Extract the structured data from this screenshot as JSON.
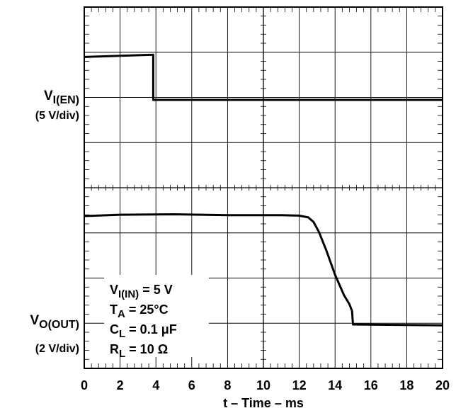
{
  "chart_data": {
    "type": "line",
    "xlabel": "t – Time – ms",
    "xlim": [
      0,
      20
    ],
    "x_ticks": [
      "0",
      "2",
      "4",
      "6",
      "8",
      "10",
      "12",
      "14",
      "16",
      "18",
      "20"
    ],
    "grid": true,
    "channels": [
      {
        "label_main": "V",
        "label_sub": "I(EN)",
        "scale": "(5 V/div)",
        "series": [
          {
            "x": [
              0,
              3.85,
              3.85,
              20
            ],
            "y_div": [
              0.95,
              1.0,
              0.0,
              0.0
            ]
          }
        ]
      },
      {
        "label_main": "V",
        "label_sub": "O(OUT)",
        "scale": "(2 V/div)",
        "series": [
          {
            "x": [
              0,
              2,
              5,
              8,
              11,
              12,
              12.5,
              12.8,
              13.1,
              13.5,
              14,
              14.5,
              14.8,
              14.95,
              15.0,
              20
            ],
            "y_div": [
              2.4,
              2.43,
              2.44,
              2.42,
              2.42,
              2.41,
              2.37,
              2.27,
              2.05,
              1.65,
              1.1,
              0.65,
              0.45,
              0.3,
              0.0,
              -0.02
            ]
          }
        ]
      }
    ],
    "annotation": [
      {
        "main": "V",
        "sub": "I(IN)",
        "rest": " = 5 V"
      },
      {
        "main": "T",
        "sub": "A",
        "rest": " = 25°C"
      },
      {
        "main": "C",
        "sub": "L",
        "rest": " = 0.1 μF"
      },
      {
        "main": "R",
        "sub": "L",
        "rest": " = 10 Ω"
      }
    ]
  }
}
